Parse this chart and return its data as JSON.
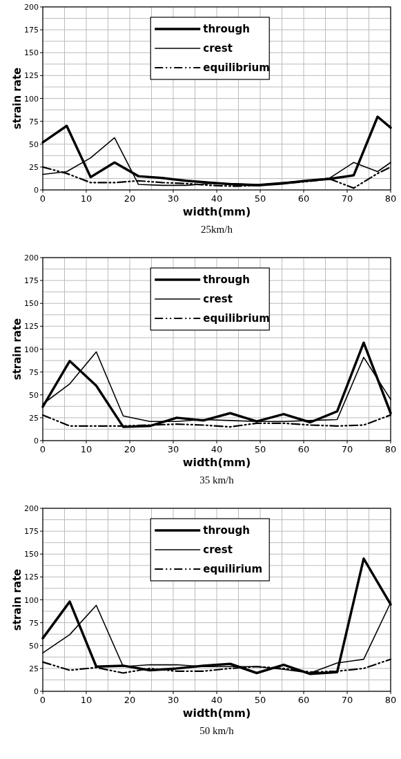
{
  "chart_data": [
    {
      "type": "line",
      "title": "25km/h",
      "xlabel": "width(mm)",
      "ylabel": "strain rate",
      "xlim": [
        0,
        80
      ],
      "xticks": [
        0,
        10,
        20,
        30,
        40,
        50,
        60,
        70,
        80
      ],
      "ylim": [
        0,
        200
      ],
      "yticks": [
        0,
        25,
        50,
        75,
        100,
        125,
        150,
        175,
        200
      ],
      "grid": true,
      "legend": "top",
      "marker": "none",
      "x": [
        0,
        5.5,
        11,
        16.5,
        22,
        27.5,
        33,
        38.5,
        44,
        49.5,
        55,
        60.5,
        66,
        71.5,
        77,
        80
      ],
      "series": [
        {
          "name": "through",
          "color": "#000000",
          "line_style": "solid",
          "values": [
            52,
            70,
            14,
            30,
            15,
            13,
            10,
            8,
            6,
            5,
            7,
            10,
            12,
            16,
            80,
            68
          ]
        },
        {
          "name": "crest",
          "color": "#000000",
          "line_style": "solid",
          "values": [
            17,
            20,
            35,
            57,
            6,
            5,
            5,
            7,
            7,
            6,
            8,
            10,
            13,
            30,
            20,
            30
          ]
        },
        {
          "name": "equilibrium",
          "color": "#000000",
          "line_style": "dashed",
          "values": [
            25,
            18,
            8,
            8,
            10,
            8,
            7,
            5,
            4,
            5,
            7,
            9,
            12,
            2,
            18,
            25
          ]
        }
      ]
    },
    {
      "type": "line",
      "title": "35 km/h",
      "xlabel": "width(mm)",
      "ylabel": "strain rate",
      "xlim": [
        0,
        80
      ],
      "xticks": [
        0,
        10,
        20,
        30,
        40,
        50,
        60,
        70,
        80
      ],
      "ylim": [
        0,
        200
      ],
      "yticks": [
        0,
        25,
        50,
        75,
        100,
        125,
        150,
        175,
        200
      ],
      "grid": true,
      "legend": "top",
      "marker": "none",
      "x": [
        0,
        6.2,
        12.3,
        18.5,
        24.6,
        30.8,
        36.9,
        43.1,
        49.2,
        55.4,
        61.5,
        67.7,
        73.8,
        80
      ],
      "series": [
        {
          "name": "through",
          "color": "#000000",
          "line_style": "solid",
          "values": [
            37,
            87,
            60,
            15,
            16,
            25,
            22,
            30,
            21,
            29,
            20,
            32,
            107,
            30
          ]
        },
        {
          "name": "crest",
          "color": "#000000",
          "line_style": "solid",
          "values": [
            40,
            62,
            97,
            27,
            21,
            21,
            23,
            22,
            21,
            21,
            22,
            23,
            91,
            45
          ]
        },
        {
          "name": "equilibrium",
          "color": "#000000",
          "line_style": "dashed",
          "values": [
            28,
            16,
            16,
            16,
            17,
            18,
            17,
            15,
            19,
            19,
            17,
            16,
            17,
            28
          ]
        }
      ]
    },
    {
      "type": "line",
      "title": "50 km/h",
      "xlabel": "width(mm)",
      "ylabel": "strain rate",
      "xlim": [
        0,
        80
      ],
      "xticks": [
        0,
        10,
        20,
        30,
        40,
        50,
        60,
        70,
        80
      ],
      "ylim": [
        0,
        200
      ],
      "yticks": [
        0,
        25,
        50,
        75,
        100,
        125,
        150,
        175,
        200
      ],
      "grid": true,
      "legend": "top",
      "marker": "none",
      "x": [
        0,
        6.2,
        12.3,
        18.5,
        24.6,
        30.8,
        36.9,
        43.1,
        49.2,
        55.4,
        61.5,
        67.7,
        73.8,
        80
      ],
      "series": [
        {
          "name": "through",
          "color": "#000000",
          "line_style": "solid",
          "values": [
            58,
            98,
            27,
            28,
            23,
            25,
            28,
            30,
            20,
            29,
            19,
            21,
            145,
            95
          ]
        },
        {
          "name": "crest",
          "color": "#000000",
          "line_style": "solid",
          "values": [
            42,
            62,
            94,
            27,
            29,
            29,
            27,
            27,
            27,
            24,
            20,
            31,
            35,
            97
          ]
        },
        {
          "name": "equilirium",
          "color": "#000000",
          "line_style": "dashed",
          "values": [
            32,
            23,
            26,
            20,
            25,
            22,
            22,
            25,
            27,
            25,
            21,
            22,
            25,
            35
          ]
        }
      ]
    }
  ]
}
